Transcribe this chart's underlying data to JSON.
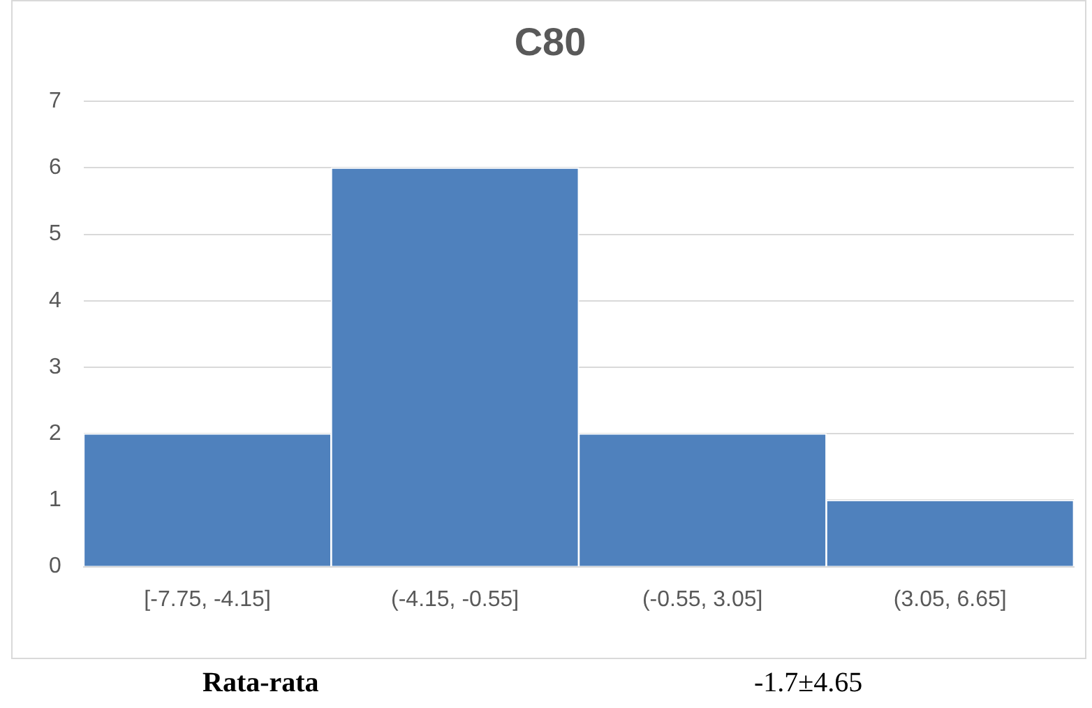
{
  "chart_data": {
    "type": "bar",
    "title": "C80",
    "categories": [
      "[-7.75, -4.15]",
      "(-4.15, -0.55]",
      "(-0.55, 3.05]",
      "(3.05, 6.65]"
    ],
    "values": [
      2,
      6,
      2,
      1
    ],
    "color": "#4f81bd",
    "ylim": [
      0,
      7
    ],
    "yticks": [
      0,
      1,
      2,
      3,
      4,
      5,
      6,
      7
    ],
    "grid": "y",
    "legend": false,
    "annotations": [
      "Rata-rata",
      "-1.7±4.65"
    ]
  }
}
